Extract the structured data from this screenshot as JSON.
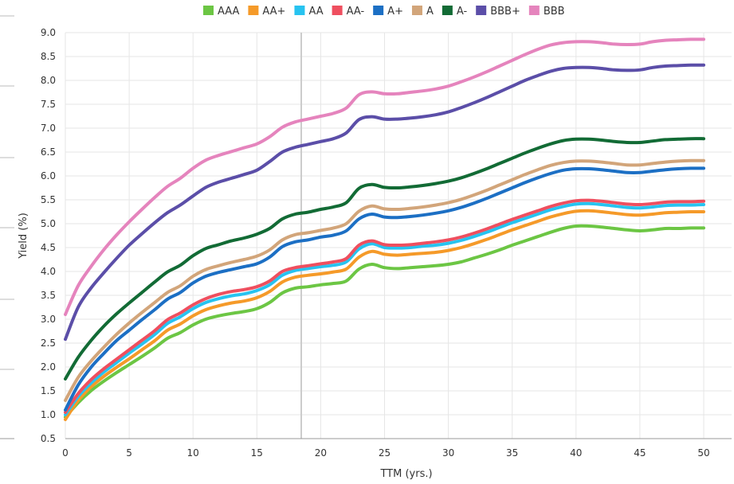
{
  "chart_data": {
    "type": "line",
    "title": "",
    "xlabel": "TTM (yrs.)",
    "ylabel": "Yield (%)",
    "xlim": [
      0,
      50
    ],
    "ylim": [
      0.5,
      9.0
    ],
    "xticks": [
      "0",
      "5",
      "10",
      "15",
      "20",
      "25",
      "30",
      "35",
      "40",
      "45",
      "50"
    ],
    "yticks": [
      "0.5",
      "1.0",
      "1.5",
      "2.0",
      "2.5",
      "3.0",
      "3.5",
      "4.0",
      "4.5",
      "5.0",
      "5.5",
      "6.0",
      "6.5",
      "7.0",
      "7.5",
      "8.0",
      "8.5",
      "9.0"
    ],
    "grid": true,
    "legend_position": "top",
    "x": [
      0,
      1,
      2,
      3,
      4,
      5,
      6,
      7,
      8,
      9,
      10,
      11,
      12,
      13,
      14,
      15,
      16,
      17,
      18,
      19,
      20,
      21,
      22,
      23,
      24,
      25,
      26,
      27,
      28,
      29,
      30,
      31,
      32,
      33,
      34,
      35,
      36,
      37,
      38,
      39,
      40,
      41,
      42,
      43,
      44,
      45,
      46,
      47,
      48,
      49,
      50
    ],
    "series": [
      {
        "name": "AAA",
        "color": "#6cc644",
        "values": [
          0.95,
          1.25,
          1.5,
          1.7,
          1.88,
          2.05,
          2.22,
          2.4,
          2.6,
          2.72,
          2.88,
          3.0,
          3.07,
          3.12,
          3.16,
          3.22,
          3.35,
          3.55,
          3.65,
          3.68,
          3.72,
          3.75,
          3.8,
          4.05,
          4.15,
          4.08,
          4.06,
          4.08,
          4.1,
          4.12,
          4.15,
          4.2,
          4.28,
          4.36,
          4.45,
          4.55,
          4.64,
          4.73,
          4.82,
          4.9,
          4.95,
          4.95,
          4.93,
          4.9,
          4.87,
          4.85,
          4.87,
          4.9,
          4.9,
          4.91,
          4.91
        ]
      },
      {
        "name": "AA+",
        "color": "#f59a29",
        "values": [
          0.9,
          1.3,
          1.58,
          1.8,
          1.99,
          2.17,
          2.36,
          2.55,
          2.77,
          2.9,
          3.07,
          3.2,
          3.28,
          3.34,
          3.38,
          3.45,
          3.58,
          3.78,
          3.88,
          3.92,
          3.95,
          3.99,
          4.05,
          4.3,
          4.42,
          4.36,
          4.34,
          4.36,
          4.38,
          4.4,
          4.44,
          4.5,
          4.58,
          4.67,
          4.77,
          4.87,
          4.96,
          5.05,
          5.14,
          5.21,
          5.26,
          5.27,
          5.25,
          5.22,
          5.19,
          5.18,
          5.2,
          5.23,
          5.24,
          5.25,
          5.25
        ]
      },
      {
        "name": "AA",
        "color": "#27c3f0",
        "values": [
          1.0,
          1.38,
          1.66,
          1.89,
          2.09,
          2.29,
          2.48,
          2.68,
          2.91,
          3.05,
          3.22,
          3.35,
          3.43,
          3.49,
          3.53,
          3.6,
          3.72,
          3.92,
          4.02,
          4.06,
          4.1,
          4.13,
          4.2,
          4.47,
          4.58,
          4.5,
          4.49,
          4.5,
          4.53,
          4.55,
          4.59,
          4.65,
          4.73,
          4.82,
          4.92,
          5.02,
          5.11,
          5.2,
          5.29,
          5.36,
          5.41,
          5.42,
          5.4,
          5.37,
          5.34,
          5.33,
          5.35,
          5.38,
          5.39,
          5.39,
          5.4
        ]
      },
      {
        "name": "AA-",
        "color": "#ef4f5f",
        "values": [
          1.05,
          1.44,
          1.73,
          1.96,
          2.16,
          2.36,
          2.56,
          2.76,
          2.99,
          3.13,
          3.3,
          3.43,
          3.52,
          3.58,
          3.62,
          3.68,
          3.8,
          4.0,
          4.08,
          4.12,
          4.16,
          4.2,
          4.27,
          4.55,
          4.64,
          4.56,
          4.55,
          4.56,
          4.59,
          4.62,
          4.66,
          4.72,
          4.8,
          4.89,
          4.99,
          5.09,
          5.18,
          5.27,
          5.36,
          5.43,
          5.48,
          5.49,
          5.47,
          5.44,
          5.41,
          5.4,
          5.42,
          5.45,
          5.46,
          5.46,
          5.47
        ]
      },
      {
        "name": "A+",
        "color": "#1c6fc4",
        "values": [
          1.1,
          1.62,
          1.99,
          2.28,
          2.55,
          2.77,
          2.99,
          3.2,
          3.42,
          3.56,
          3.76,
          3.9,
          3.98,
          4.04,
          4.1,
          4.16,
          4.3,
          4.52,
          4.62,
          4.66,
          4.72,
          4.76,
          4.85,
          5.1,
          5.2,
          5.14,
          5.13,
          5.15,
          5.18,
          5.22,
          5.27,
          5.34,
          5.43,
          5.53,
          5.64,
          5.75,
          5.86,
          5.96,
          6.05,
          6.12,
          6.15,
          6.15,
          6.13,
          6.1,
          6.07,
          6.07,
          6.1,
          6.13,
          6.15,
          6.16,
          6.16
        ]
      },
      {
        "name": "A",
        "color": "#d2a57a",
        "values": [
          1.3,
          1.78,
          2.12,
          2.41,
          2.68,
          2.92,
          3.14,
          3.35,
          3.56,
          3.7,
          3.9,
          4.04,
          4.12,
          4.19,
          4.25,
          4.32,
          4.45,
          4.66,
          4.77,
          4.81,
          4.86,
          4.91,
          5.0,
          5.26,
          5.37,
          5.31,
          5.3,
          5.32,
          5.35,
          5.39,
          5.44,
          5.51,
          5.6,
          5.7,
          5.81,
          5.92,
          6.03,
          6.13,
          6.22,
          6.28,
          6.31,
          6.31,
          6.29,
          6.26,
          6.23,
          6.23,
          6.26,
          6.29,
          6.31,
          6.32,
          6.32
        ]
      },
      {
        "name": "A-",
        "color": "#126b35",
        "values": [
          1.75,
          2.2,
          2.55,
          2.85,
          3.11,
          3.34,
          3.56,
          3.78,
          3.99,
          4.13,
          4.33,
          4.48,
          4.56,
          4.64,
          4.7,
          4.78,
          4.9,
          5.1,
          5.2,
          5.24,
          5.3,
          5.35,
          5.44,
          5.74,
          5.82,
          5.76,
          5.75,
          5.77,
          5.8,
          5.84,
          5.89,
          5.96,
          6.05,
          6.15,
          6.26,
          6.37,
          6.48,
          6.58,
          6.67,
          6.74,
          6.77,
          6.77,
          6.75,
          6.72,
          6.7,
          6.7,
          6.73,
          6.76,
          6.77,
          6.78,
          6.78
        ]
      },
      {
        "name": "BBB+",
        "color": "#5b4ea8",
        "values": [
          2.58,
          3.25,
          3.65,
          3.97,
          4.27,
          4.55,
          4.79,
          5.02,
          5.23,
          5.39,
          5.58,
          5.76,
          5.87,
          5.95,
          6.03,
          6.12,
          6.3,
          6.5,
          6.6,
          6.66,
          6.72,
          6.78,
          6.9,
          7.18,
          7.24,
          7.19,
          7.19,
          7.21,
          7.24,
          7.28,
          7.34,
          7.43,
          7.53,
          7.64,
          7.76,
          7.88,
          8.0,
          8.1,
          8.19,
          8.25,
          8.27,
          8.27,
          8.25,
          8.22,
          8.21,
          8.22,
          8.27,
          8.3,
          8.31,
          8.32,
          8.32
        ]
      },
      {
        "name": "BBB",
        "color": "#e584bd",
        "values": [
          3.1,
          3.7,
          4.1,
          4.45,
          4.76,
          5.04,
          5.3,
          5.55,
          5.78,
          5.95,
          6.16,
          6.33,
          6.43,
          6.51,
          6.59,
          6.67,
          6.82,
          7.02,
          7.13,
          7.19,
          7.25,
          7.31,
          7.42,
          7.7,
          7.76,
          7.72,
          7.72,
          7.75,
          7.78,
          7.82,
          7.88,
          7.97,
          8.07,
          8.18,
          8.3,
          8.42,
          8.54,
          8.65,
          8.74,
          8.79,
          8.81,
          8.81,
          8.79,
          8.76,
          8.75,
          8.76,
          8.81,
          8.84,
          8.85,
          8.86,
          8.86
        ]
      }
    ]
  }
}
